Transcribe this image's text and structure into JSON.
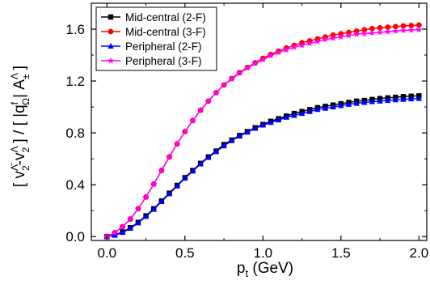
{
  "chart_data": {
    "type": "line",
    "xlabel": "p_t (GeV)",
    "ylabel": "[ v_2^Λ̄ - v_2^Λ ] / [ |q_Ω^f| A_±^Λ ]",
    "xlim": [
      -0.1,
      2.05
    ],
    "ylim": [
      -0.03,
      1.8
    ],
    "x_ticks": [
      "0.0",
      "0.5",
      "1.0",
      "1.5",
      "2.0"
    ],
    "y_ticks": [
      "0.0",
      "0.4",
      "0.8",
      "1.2",
      "1.6"
    ],
    "grid": false,
    "legend_position": "top-left",
    "x": [
      0.0,
      0.05,
      0.1,
      0.15,
      0.2,
      0.25,
      0.3,
      0.35,
      0.4,
      0.45,
      0.5,
      0.55,
      0.6,
      0.65,
      0.7,
      0.75,
      0.8,
      0.85,
      0.9,
      0.95,
      1.0,
      1.05,
      1.1,
      1.15,
      1.2,
      1.25,
      1.3,
      1.35,
      1.4,
      1.45,
      1.5,
      1.55,
      1.6,
      1.65,
      1.7,
      1.75,
      1.8,
      1.85,
      1.9,
      1.95,
      2.0
    ],
    "series": [
      {
        "name": "Mid-central (2-F)",
        "color": "#000000",
        "marker": "square",
        "values": [
          0.0,
          0.012,
          0.035,
          0.068,
          0.11,
          0.16,
          0.215,
          0.275,
          0.335,
          0.395,
          0.455,
          0.51,
          0.565,
          0.615,
          0.66,
          0.71,
          0.745,
          0.78,
          0.81,
          0.84,
          0.865,
          0.89,
          0.91,
          0.93,
          0.95,
          0.965,
          0.98,
          0.995,
          1.005,
          1.015,
          1.025,
          1.035,
          1.045,
          1.05,
          1.058,
          1.065,
          1.07,
          1.075,
          1.08,
          1.083,
          1.086
        ]
      },
      {
        "name": "Mid-central (3-F)",
        "color": "#ff0000",
        "marker": "circle",
        "values": [
          0.0,
          0.03,
          0.075,
          0.135,
          0.215,
          0.305,
          0.405,
          0.51,
          0.615,
          0.715,
          0.81,
          0.895,
          0.975,
          1.045,
          1.11,
          1.17,
          1.22,
          1.265,
          1.305,
          1.34,
          1.375,
          1.405,
          1.43,
          1.455,
          1.475,
          1.495,
          1.51,
          1.525,
          1.54,
          1.555,
          1.565,
          1.575,
          1.585,
          1.595,
          1.605,
          1.61,
          1.615,
          1.62,
          1.625,
          1.628,
          1.632
        ]
      },
      {
        "name": "Peripheral (2-F)",
        "color": "#0000ff",
        "marker": "triangle",
        "values": [
          0.0,
          0.01,
          0.032,
          0.064,
          0.105,
          0.155,
          0.21,
          0.27,
          0.33,
          0.39,
          0.45,
          0.505,
          0.56,
          0.61,
          0.655,
          0.7,
          0.74,
          0.775,
          0.805,
          0.835,
          0.86,
          0.88,
          0.9,
          0.92,
          0.935,
          0.95,
          0.965,
          0.98,
          0.99,
          1.0,
          1.01,
          1.02,
          1.028,
          1.035,
          1.04,
          1.045,
          1.05,
          1.055,
          1.058,
          1.062,
          1.065
        ]
      },
      {
        "name": "Peripheral (3-F)",
        "color": "#ff00ff",
        "marker": "star",
        "values": [
          0.0,
          0.03,
          0.075,
          0.135,
          0.215,
          0.305,
          0.405,
          0.51,
          0.615,
          0.715,
          0.81,
          0.895,
          0.975,
          1.045,
          1.11,
          1.17,
          1.215,
          1.26,
          1.3,
          1.335,
          1.365,
          1.395,
          1.42,
          1.44,
          1.46,
          1.475,
          1.49,
          1.505,
          1.52,
          1.53,
          1.54,
          1.55,
          1.56,
          1.565,
          1.57,
          1.575,
          1.58,
          1.585,
          1.59,
          1.593,
          1.596
        ]
      }
    ]
  }
}
